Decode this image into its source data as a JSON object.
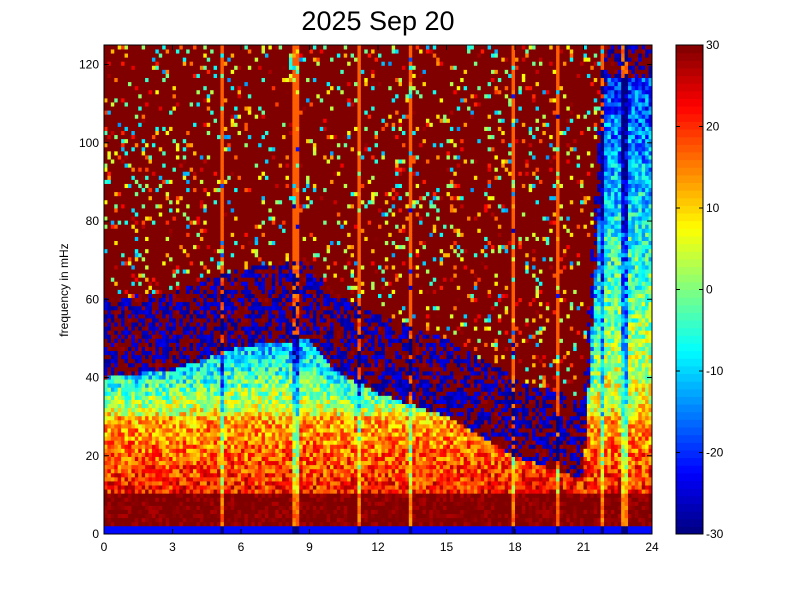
{
  "chart_data": {
    "type": "heatmap",
    "title": "2025 Sep 20",
    "xlabel": "",
    "ylabel": "frequency in mHz",
    "xlim": [
      0,
      24
    ],
    "ylim": [
      0,
      125
    ],
    "xticks": [
      "0",
      "3",
      "6",
      "9",
      "12",
      "15",
      "18",
      "21",
      "24"
    ],
    "yticks": [
      "0",
      "20",
      "40",
      "60",
      "80",
      "100",
      "120"
    ],
    "colormap": "jet",
    "clim": [
      -30,
      30
    ],
    "colorbar_ticks": [
      "30",
      "20",
      "10",
      "0",
      "-10",
      "-20",
      "-30"
    ],
    "band_profile": [
      {
        "hour": 0,
        "low_edge_mhz": 48
      },
      {
        "hour": 3,
        "low_edge_mhz": 50
      },
      {
        "hour": 6,
        "low_edge_mhz": 56
      },
      {
        "hour": 9,
        "low_edge_mhz": 58
      },
      {
        "hour": 10,
        "low_edge_mhz": 50
      },
      {
        "hour": 12,
        "low_edge_mhz": 44
      },
      {
        "hour": 15,
        "low_edge_mhz": 38
      },
      {
        "hour": 18,
        "low_edge_mhz": 28
      },
      {
        "hour": 21,
        "low_edge_mhz": 22
      },
      {
        "hour": 22,
        "low_edge_mhz": 125
      },
      {
        "hour": 24,
        "low_edge_mhz": 125
      }
    ],
    "vertical_streaks_hours": [
      5.2,
      8.4,
      11.2,
      13.4,
      17.9,
      19.9,
      21.8,
      22.8
    ]
  }
}
